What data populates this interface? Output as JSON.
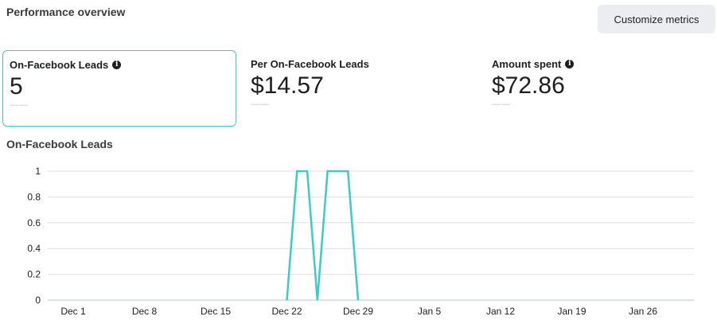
{
  "header": {
    "title": "Performance overview",
    "customize_label": "Customize metrics"
  },
  "metrics": [
    {
      "label": "On-Facebook Leads",
      "value": "5",
      "compare": "——",
      "info_icon": "info-icon",
      "selected": true
    },
    {
      "label": "Per On-Facebook Leads",
      "value": "$14.57",
      "compare": "——",
      "selected": false
    },
    {
      "label": "Amount spent",
      "value": "$72.86",
      "compare": "——",
      "info_icon": "info-icon",
      "selected": false
    }
  ],
  "chart_title": "On-Facebook Leads",
  "colors": {
    "line": "#3ccbc6",
    "selected_border": "#3fc8c9",
    "grid": "#dddfe2"
  },
  "chart_data": {
    "type": "line",
    "title": "On-Facebook Leads",
    "xlabel": "",
    "ylabel": "",
    "ylim": [
      0,
      1
    ],
    "grid": true,
    "y_ticks": [
      "0",
      "0.2",
      "0.4",
      "0.6",
      "0.8",
      "1"
    ],
    "x_ticks": [
      "Dec 1",
      "Dec 8",
      "Dec 15",
      "Dec 22",
      "Dec 29",
      "Jan 5",
      "Jan 12",
      "Jan 19",
      "Jan 26"
    ],
    "series": [
      {
        "x": [
          "Dec 22",
          "Dec 23",
          "Dec 24",
          "Dec 25",
          "Dec 26",
          "Dec 27",
          "Dec 28",
          "Dec 29"
        ],
        "values": [
          0,
          1,
          1,
          0,
          1,
          1,
          1,
          0
        ]
      }
    ]
  }
}
